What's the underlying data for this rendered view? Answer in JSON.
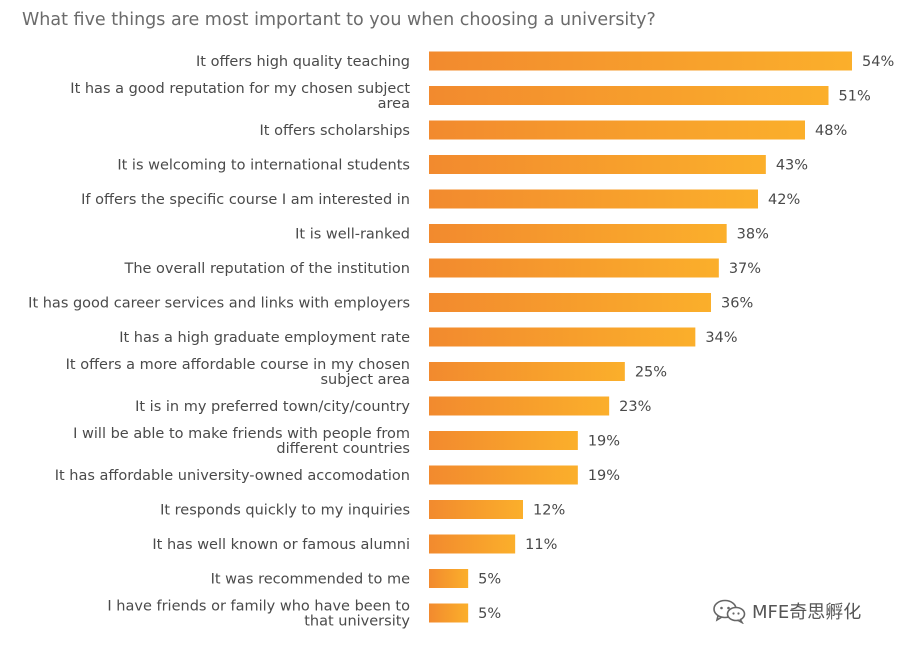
{
  "chart_data": {
    "type": "bar",
    "orientation": "horizontal",
    "title": "What five things are most important to you when choosing a university?",
    "categories": [
      [
        "It offers high quality teaching"
      ],
      [
        "It has a good reputation for my chosen subject",
        "area"
      ],
      [
        "It offers scholarships"
      ],
      [
        "It is welcoming to international students"
      ],
      [
        "If offers the specific course I am interested in"
      ],
      [
        "It is well-ranked"
      ],
      [
        "The overall reputation of the institution"
      ],
      [
        "It has good career services and links with employers"
      ],
      [
        "It has a high graduate employment rate"
      ],
      [
        "It offers a more affordable course in my chosen",
        "subject area"
      ],
      [
        "It is in my preferred town/city/country"
      ],
      [
        "I will be able to make friends with people from",
        "different countries"
      ],
      [
        "It has affordable university-owned accomodation"
      ],
      [
        "It responds quickly to my inquiries"
      ],
      [
        "It has well known or famous alumni"
      ],
      [
        "It was recommended to me"
      ],
      [
        "I have friends or family who have been to",
        "that university"
      ]
    ],
    "values": [
      54,
      51,
      48,
      43,
      42,
      38,
      37,
      36,
      34,
      25,
      23,
      19,
      19,
      12,
      11,
      5,
      5
    ],
    "value_suffix": "%",
    "xlim": [
      0,
      54
    ],
    "grid": false,
    "legend": "none",
    "colors": {
      "bar_start": "#F28A2E",
      "bar_end": "#FBAF2B",
      "text": "#4a4a4a",
      "title": "#6b6b6b"
    }
  },
  "watermark": {
    "text": "MFE奇思孵化",
    "icon": "wechat-icon"
  }
}
